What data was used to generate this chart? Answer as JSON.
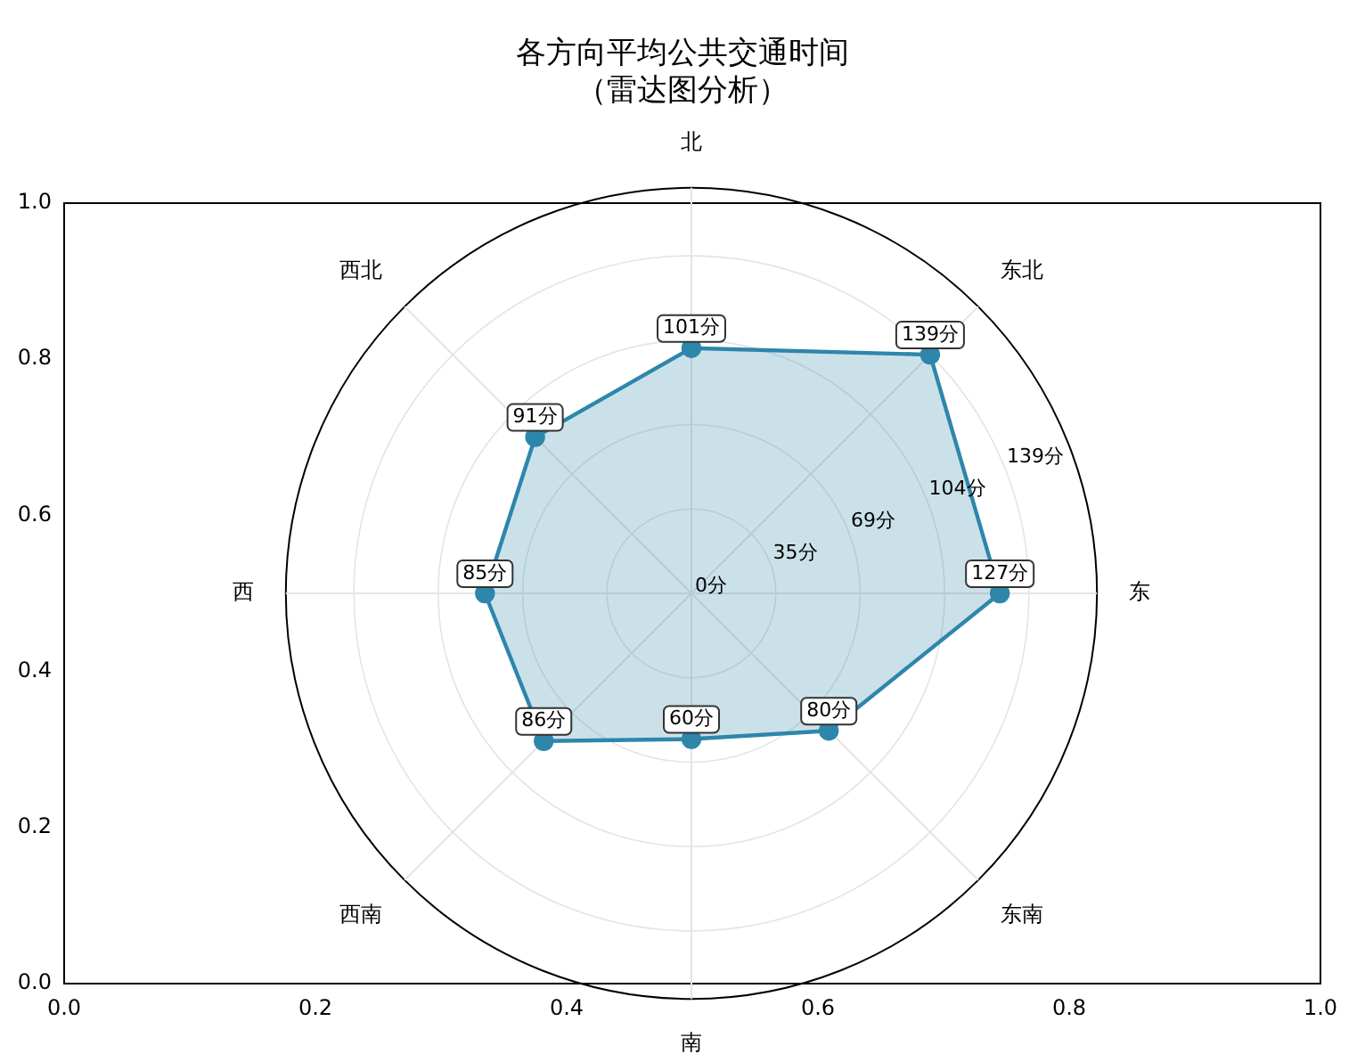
{
  "chart_data": [
    {
      "type": "radar",
      "title": "各方向平均公共交通时间",
      "subtitle": "（雷达图分析）",
      "categories": [
        "北",
        "东北",
        "东",
        "东南",
        "南",
        "西南",
        "西",
        "西北"
      ],
      "series": [
        {
          "color": "#2e86ab",
          "values": [
            101,
            139,
            127,
            80,
            60,
            86,
            85,
            91
          ],
          "value_labels": [
            "101分",
            "139分",
            "127分",
            "80分",
            "60分",
            "86分",
            "85分",
            "91分"
          ]
        }
      ],
      "ylim": [
        0,
        167
      ],
      "yticks": [
        {
          "value": 0,
          "label": "0分"
        },
        {
          "value": 34.75,
          "label": "35分"
        },
        {
          "value": 69.5,
          "label": "69分"
        },
        {
          "value": 104.25,
          "label": "104分"
        },
        {
          "value": 139,
          "label": "139分"
        }
      ],
      "marker": "circle",
      "grid": true,
      "legend": false
    },
    {
      "type": "scatter",
      "xlim": [
        0,
        1
      ],
      "ylim": [
        0,
        1
      ],
      "xticks": [
        {
          "value": 0,
          "label": "0.0"
        },
        {
          "value": 0.2,
          "label": "0.2"
        },
        {
          "value": 0.4,
          "label": "0.4"
        },
        {
          "value": 0.6,
          "label": "0.6"
        },
        {
          "value": 0.8,
          "label": "0.8"
        },
        {
          "value": 1,
          "label": "1.0"
        }
      ],
      "yticks": [
        {
          "value": 0,
          "label": "0.0"
        },
        {
          "value": 0.2,
          "label": "0.2"
        },
        {
          "value": 0.4,
          "label": "0.4"
        },
        {
          "value": 0.6,
          "label": "0.6"
        },
        {
          "value": 0.8,
          "label": "0.8"
        },
        {
          "value": 1,
          "label": "1.0"
        }
      ],
      "grid": false,
      "legend": false
    }
  ]
}
